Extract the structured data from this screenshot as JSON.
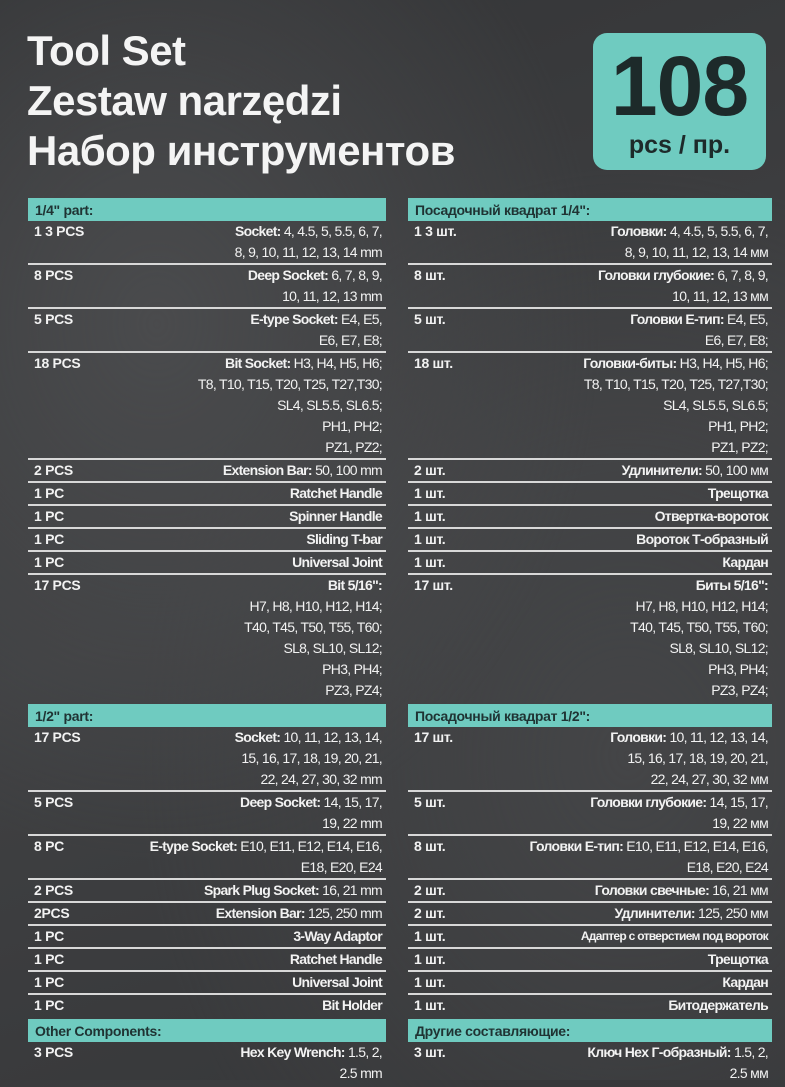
{
  "header": {
    "titles": [
      "Tool Set",
      "Zestaw narzędzi",
      "Набор инструментов"
    ],
    "badge_number": "108",
    "badge_unit": "pcs / пр."
  },
  "colors": {
    "accent": "#6fcbc0",
    "background": "#3b3c3e",
    "text": "#f2f2f2",
    "badge_text": "#1d2a2a"
  },
  "left": [
    {
      "title": "1/4\" part:",
      "items": [
        {
          "qty": "1 3 PCS",
          "name": "Socket:",
          "lines": [
            " 4, 4.5, 5, 5.5, 6, 7,",
            "8, 9, 10, 11, 12, 13, 14 mm"
          ]
        },
        {
          "qty": "8 PCS",
          "name": "Deep Socket:",
          "lines": [
            " 6, 7, 8, 9,",
            "10, 11, 12, 13 mm"
          ]
        },
        {
          "qty": "5 PCS",
          "name": "E-type Socket:",
          "lines": [
            " E4, E5,",
            "E6, E7, E8;"
          ]
        },
        {
          "qty": "18 PCS",
          "name": "Bit Socket:",
          "lines": [
            " H3, H4, H5, H6;",
            "T8, T10, T15, T20, T25, T27,T30;",
            "SL4, SL5.5, SL6.5;",
            "PH1, PH2;",
            "PZ1, PZ2;"
          ]
        },
        {
          "qty": "2 PCS",
          "name": "Extension Bar:",
          "lines": [
            " 50, 100 mm"
          ]
        },
        {
          "qty": "1 PC",
          "name": "Ratchet Handle",
          "lines": [
            ""
          ]
        },
        {
          "qty": "1 PC",
          "name": "Spinner Handle",
          "lines": [
            ""
          ]
        },
        {
          "qty": "1 PC",
          "name": "Sliding T-bar",
          "lines": [
            ""
          ]
        },
        {
          "qty": "1 PC",
          "name": "Universal Joint",
          "lines": [
            ""
          ]
        },
        {
          "qty": "17 PCS",
          "name": "Bit 5/16\":",
          "lines": [
            "",
            "H7, H8, H10, H12, H14;",
            "T40, T45, T50, T55, T60;",
            "SL8, SL10, SL12;",
            "PH3, PH4;",
            "PZ3, PZ4;"
          ]
        }
      ]
    },
    {
      "title": "1/2\" part:",
      "items": [
        {
          "qty": "17 PCS",
          "name": "Socket:",
          "lines": [
            " 10, 11, 12, 13, 14,",
            "15, 16, 17, 18, 19, 20, 21,",
            "22, 24, 27, 30, 32 mm"
          ]
        },
        {
          "qty": "5 PCS",
          "name": "Deep Socket:",
          "lines": [
            " 14, 15, 17,",
            "19, 22 mm"
          ]
        },
        {
          "qty": "8 PC",
          "name": "E-type Socket:",
          "lines": [
            " E10, E11, E12, E14, E16,",
            "E18, E20, E24"
          ]
        },
        {
          "qty": "2 PCS",
          "name": "Spark Plug Socket:",
          "lines": [
            " 16, 21 mm"
          ]
        },
        {
          "qty": "2PCS",
          "name": "Extension Bar:",
          "lines": [
            " 125, 250 mm"
          ]
        },
        {
          "qty": "1 PC",
          "name": "3-Way Adaptor",
          "lines": [
            ""
          ]
        },
        {
          "qty": "1 PC",
          "name": "Ratchet Handle",
          "lines": [
            ""
          ]
        },
        {
          "qty": "1 PC",
          "name": "Universal Joint",
          "lines": [
            ""
          ]
        },
        {
          "qty": "1 PC",
          "name": "Bit Holder",
          "lines": [
            ""
          ]
        }
      ]
    },
    {
      "title": "Other Components:",
      "items": [
        {
          "qty": "3 PCS",
          "name": "Hex Key Wrench:",
          "lines": [
            " 1.5, 2,",
            "2.5 mm"
          ]
        }
      ]
    }
  ],
  "right": [
    {
      "title": "Посадочный квадрат 1/4\":",
      "items": [
        {
          "qty": "1 3 шт.",
          "name": "Головки:",
          "lines": [
            " 4, 4.5, 5, 5.5, 6, 7,",
            "8, 9, 10, 11, 12, 13, 14 мм"
          ]
        },
        {
          "qty": "8 шт.",
          "name": "Головки глубокие:",
          "lines": [
            " 6, 7, 8, 9,",
            "10, 11, 12, 13 мм"
          ]
        },
        {
          "qty": "5 шт.",
          "name": "Головки Е-тип:",
          "lines": [
            " E4, E5,",
            "E6, E7, E8;"
          ]
        },
        {
          "qty": "18 шт.",
          "name": "Головки-биты:",
          "lines": [
            " H3, H4, H5, H6;",
            "T8, T10, T15, T20, T25, T27,T30;",
            "SL4, SL5.5, SL6.5;",
            "PH1, PH2;",
            "PZ1, PZ2;"
          ]
        },
        {
          "qty": "2 шт.",
          "name": "Удлинители:",
          "lines": [
            " 50, 100 мм"
          ]
        },
        {
          "qty": "1 шт.",
          "name": "Трещотка",
          "lines": [
            ""
          ]
        },
        {
          "qty": "1 шт.",
          "name": "Отвертка-вороток",
          "lines": [
            ""
          ]
        },
        {
          "qty": "1 шт.",
          "name": "Вороток Т-образный",
          "lines": [
            ""
          ]
        },
        {
          "qty": "1 шт.",
          "name": "Кардан",
          "lines": [
            ""
          ]
        },
        {
          "qty": "17 шт.",
          "name": "Биты 5/16\":",
          "lines": [
            "",
            "H7, H8, H10, H12, H14;",
            "T40, T45, T50, T55, T60;",
            "SL8, SL10, SL12;",
            "PH3, PH4;",
            "PZ3, PZ4;"
          ]
        }
      ]
    },
    {
      "title": "Посадочный квадрат 1/2\":",
      "items": [
        {
          "qty": "17 шт.",
          "name": "Головки:",
          "lines": [
            " 10, 11, 12, 13, 14,",
            "15, 16, 17, 18, 19, 20, 21,",
            "22, 24, 27, 30, 32 мм"
          ]
        },
        {
          "qty": "5 шт.",
          "name": "Головки глубокие:",
          "lines": [
            " 14, 15, 17,",
            "19, 22 мм"
          ]
        },
        {
          "qty": "8 шт.",
          "name": "Головки Е-тип:",
          "lines": [
            " E10, E11, E12, E14, E16,",
            "E18, E20, E24"
          ]
        },
        {
          "qty": "2 шт.",
          "name": "Головки свечные:",
          "lines": [
            " 16, 21 мм"
          ]
        },
        {
          "qty": "2 шт.",
          "name": "Удлинители:",
          "lines": [
            " 125, 250 мм"
          ]
        },
        {
          "qty": "1 шт.",
          "name": "Адаптер с отверстием под вороток",
          "lines": [
            ""
          ],
          "small": true
        },
        {
          "qty": "1 шт.",
          "name": "Трещотка",
          "lines": [
            ""
          ]
        },
        {
          "qty": "1 шт.",
          "name": "Кардан",
          "lines": [
            ""
          ]
        },
        {
          "qty": "1 шт.",
          "name": "Битодержатель",
          "lines": [
            ""
          ]
        }
      ]
    },
    {
      "title": "Другие составляющие:",
      "items": [
        {
          "qty": "3 шт.",
          "name": "Ключ Hex Г-образный:",
          "lines": [
            " 1.5, 2,",
            "2.5 мм"
          ]
        }
      ]
    }
  ]
}
